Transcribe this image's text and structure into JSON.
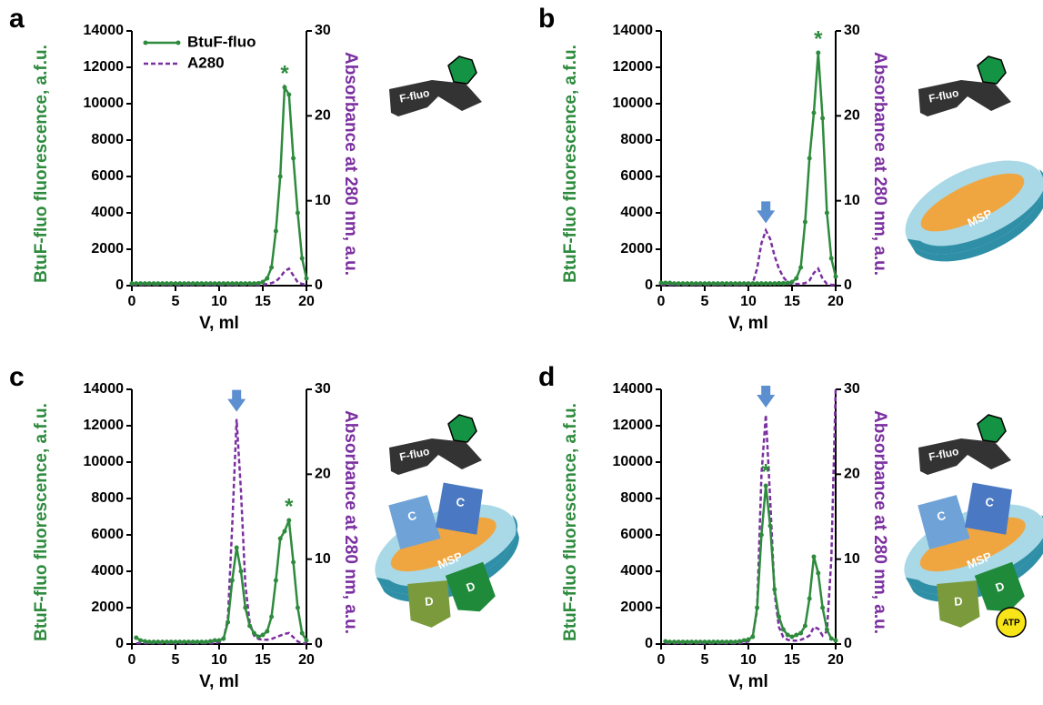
{
  "chart_data": [
    {
      "type": "line",
      "panel_label": "a",
      "x_label": "V, ml",
      "y_label": "BtuF-fluo fluorescence, a.f.u.",
      "y2_label": "Absorbance at 280 nm, a.u.",
      "xlim": [
        0,
        20
      ],
      "xticks": [
        0,
        5,
        10,
        15,
        20
      ],
      "ylim": [
        0,
        14000
      ],
      "yticks": [
        0,
        2000,
        4000,
        6000,
        8000,
        10000,
        12000,
        14000
      ],
      "y2lim": [
        0,
        30
      ],
      "y2ticks": [
        0,
        10,
        20,
        30
      ],
      "legend": "upper left",
      "annotations": [
        "*"
      ],
      "peak_arrow": false,
      "illustration_labels": {
        "ligand": "F-fluo"
      },
      "x": [
        0,
        0.5,
        1,
        1.5,
        2,
        2.5,
        3,
        3.5,
        4,
        4.5,
        5,
        5.5,
        6,
        6.5,
        7,
        7.5,
        8,
        8.5,
        9,
        9.5,
        10,
        10.5,
        11,
        11.5,
        12,
        12.5,
        13,
        13.5,
        14,
        14.5,
        15,
        15.5,
        16,
        16.5,
        17,
        17.5,
        18,
        18.5,
        19,
        19.5,
        20
      ],
      "series": [
        {
          "name": "BtuF-fluo",
          "color": "#2e8b3e",
          "markers": true,
          "line_style": "solid",
          "values": [
            120,
            120,
            120,
            120,
            120,
            120,
            120,
            120,
            120,
            120,
            120,
            120,
            120,
            120,
            120,
            120,
            120,
            120,
            120,
            120,
            120,
            120,
            120,
            120,
            120,
            120,
            120,
            120,
            120,
            130,
            200,
            400,
            1000,
            3000,
            6000,
            10900,
            10500,
            7000,
            4000,
            1500,
            400
          ]
        },
        {
          "name": "A280",
          "color": "#7b2fa0",
          "axis": "y2",
          "markers": false,
          "line_style": "dashed",
          "values": [
            0.1,
            0.1,
            0.1,
            0.1,
            0.1,
            0.1,
            0.1,
            0.1,
            0.1,
            0.1,
            0.1,
            0.1,
            0.1,
            0.1,
            0.1,
            0.1,
            0.1,
            0.1,
            0.1,
            0.1,
            0.1,
            0.1,
            0.1,
            0.1,
            0.1,
            0.1,
            0.1,
            0.1,
            0.1,
            0.1,
            0.1,
            0.2,
            0.3,
            0.5,
            1,
            1.7,
            2,
            1.2,
            0.4,
            0.2,
            0.1
          ]
        }
      ]
    },
    {
      "type": "line",
      "panel_label": "b",
      "x_label": "V, ml",
      "y_label": "BtuF-fluo fluorescence, a.f.u.",
      "y2_label": "Absorbance at 280 nm, a.u.",
      "xlim": [
        0,
        20
      ],
      "xticks": [
        0,
        5,
        10,
        15,
        20
      ],
      "ylim": [
        0,
        14000
      ],
      "yticks": [
        0,
        2000,
        4000,
        6000,
        8000,
        10000,
        12000,
        14000
      ],
      "y2lim": [
        0,
        30
      ],
      "y2ticks": [
        0,
        10,
        20,
        30
      ],
      "annotations": [
        "*"
      ],
      "peak_arrow": true,
      "illustration_labels": {
        "ligand": "F-fluo",
        "disc": "MSP"
      },
      "x": [
        0,
        0.5,
        1,
        1.5,
        2,
        2.5,
        3,
        3.5,
        4,
        4.5,
        5,
        5.5,
        6,
        6.5,
        7,
        7.5,
        8,
        8.5,
        9,
        9.5,
        10,
        10.5,
        11,
        11.5,
        12,
        12.5,
        13,
        13.5,
        14,
        14.5,
        15,
        15.5,
        16,
        16.5,
        17,
        17.5,
        18,
        18.5,
        19,
        19.5,
        20
      ],
      "series": [
        {
          "color": "#2e8b3e",
          "markers": true,
          "line_style": "solid",
          "values": [
            150,
            150,
            150,
            120,
            120,
            120,
            120,
            120,
            120,
            120,
            120,
            120,
            120,
            120,
            120,
            120,
            120,
            120,
            120,
            120,
            120,
            120,
            120,
            120,
            120,
            120,
            120,
            130,
            130,
            150,
            200,
            400,
            1000,
            3500,
            7000,
            9500,
            12800,
            9200,
            4000,
            1500,
            500
          ]
        },
        {
          "color": "#7b2fa0",
          "axis": "y2",
          "markers": false,
          "line_style": "dashed",
          "values": [
            0.1,
            0.1,
            0.1,
            0.1,
            0.1,
            0.1,
            0.1,
            0.1,
            0.1,
            0.1,
            0.1,
            0.1,
            0.1,
            0.1,
            0.1,
            0.1,
            0.1,
            0.1,
            0.1,
            0.1,
            0.1,
            0.3,
            2,
            5,
            6.5,
            5.5,
            3.5,
            2,
            1,
            0.4,
            0.2,
            0.2,
            0.2,
            0.3,
            0.6,
            1.5,
            2,
            0.8,
            0.2,
            0.1,
            0.1
          ]
        }
      ]
    },
    {
      "type": "line",
      "panel_label": "c",
      "x_label": "V, ml",
      "y_label": "BtuF-fluo fluorescence, a.f.u.",
      "y2_label": "Absorbance at 280 nm, a.u.",
      "xlim": [
        0,
        20
      ],
      "xticks": [
        0,
        5,
        10,
        15,
        20
      ],
      "ylim": [
        0,
        14000
      ],
      "yticks": [
        0,
        2000,
        4000,
        6000,
        8000,
        10000,
        12000,
        14000
      ],
      "y2lim": [
        0,
        30
      ],
      "y2ticks": [
        0,
        10,
        20,
        30
      ],
      "annotations": [
        "*"
      ],
      "peak_arrow": true,
      "illustration_labels": {
        "ligand": "F-fluo",
        "disc": "MSP",
        "c_blocks": [
          "C",
          "C"
        ],
        "d_blocks": [
          "D",
          "D"
        ]
      },
      "x": [
        0,
        0.5,
        1,
        1.5,
        2,
        2.5,
        3,
        3.5,
        4,
        4.5,
        5,
        5.5,
        6,
        6.5,
        7,
        7.5,
        8,
        8.5,
        9,
        9.5,
        10,
        10.5,
        11,
        11.5,
        12,
        12.5,
        13,
        13.5,
        14,
        14.5,
        15,
        15.5,
        16,
        16.5,
        17,
        17.5,
        18,
        18.5,
        19,
        19.5,
        20
      ],
      "series": [
        {
          "color": "#2e8b3e",
          "markers": true,
          "line_style": "solid",
          "values": [
            null,
            350,
            200,
            150,
            120,
            120,
            120,
            120,
            120,
            120,
            120,
            120,
            120,
            120,
            120,
            120,
            120,
            120,
            150,
            200,
            200,
            300,
            1200,
            3500,
            5300,
            4000,
            2000,
            1000,
            600,
            400,
            500,
            700,
            1500,
            3500,
            5800,
            6200,
            6800,
            4500,
            2000,
            600,
            200
          ]
        },
        {
          "color": "#7b2fa0",
          "axis": "y2",
          "markers": false,
          "line_style": "dashed",
          "values": [
            null,
            0.1,
            0.1,
            0.1,
            0.1,
            0.1,
            0.1,
            0.1,
            0.1,
            0.1,
            0.1,
            0.1,
            0.1,
            0.1,
            0.1,
            0.1,
            0.1,
            0.1,
            0.1,
            0.1,
            0.2,
            0.5,
            3,
            14,
            26.5,
            18,
            7,
            2.5,
            1,
            0.6,
            0.5,
            0.5,
            0.6,
            0.8,
            1,
            1.2,
            1.3,
            0.8,
            0.3,
            0.1,
            0.1
          ]
        }
      ]
    },
    {
      "type": "line",
      "panel_label": "d",
      "x_label": "V, ml",
      "y_label": "BtuF-fluo fluorescence, a.f.u.",
      "y2_label": "Absorbance at 280 nm, a.u.",
      "xlim": [
        0,
        20
      ],
      "xticks": [
        0,
        5,
        10,
        15,
        20
      ],
      "ylim": [
        0,
        14000
      ],
      "yticks": [
        0,
        2000,
        4000,
        6000,
        8000,
        10000,
        12000,
        14000
      ],
      "y2lim": [
        0,
        30
      ],
      "y2ticks": [
        0,
        10,
        20,
        30
      ],
      "annotations": [
        "*"
      ],
      "peak_arrow": true,
      "illustration_labels": {
        "ligand": "F-fluo",
        "disc": "MSP",
        "c_blocks": [
          "C",
          "C"
        ],
        "d_blocks": [
          "D",
          "D"
        ],
        "atp": "ATP"
      },
      "x": [
        0,
        0.5,
        1,
        1.5,
        2,
        2.5,
        3,
        3.5,
        4,
        4.5,
        5,
        5.5,
        6,
        6.5,
        7,
        7.5,
        8,
        8.5,
        9,
        9.5,
        10,
        10.5,
        11,
        11.5,
        12,
        12.5,
        13,
        13.5,
        14,
        14.5,
        15,
        15.5,
        16,
        16.5,
        17,
        17.5,
        18,
        18.5,
        19,
        19.5,
        20
      ],
      "series": [
        {
          "color": "#2e8b3e",
          "markers": true,
          "line_style": "solid",
          "values": [
            null,
            150,
            120,
            120,
            120,
            120,
            120,
            120,
            120,
            120,
            120,
            120,
            120,
            120,
            120,
            120,
            120,
            120,
            150,
            200,
            250,
            400,
            2000,
            6000,
            8700,
            6500,
            3000,
            1500,
            800,
            500,
            400,
            500,
            600,
            1000,
            2500,
            4800,
            3900,
            2000,
            800,
            300,
            200
          ]
        },
        {
          "color": "#7b2fa0",
          "axis": "y2",
          "markers": false,
          "line_style": "dashed",
          "values": [
            null,
            0.1,
            0.1,
            0.1,
            0.1,
            0.1,
            0.1,
            0.1,
            0.1,
            0.1,
            0.1,
            0.1,
            0.1,
            0.1,
            0.1,
            0.1,
            0.1,
            0.1,
            0.1,
            0.2,
            0.3,
            1,
            4,
            20,
            27,
            17,
            6,
            2,
            0.8,
            0.5,
            0.4,
            0.4,
            0.5,
            0.7,
            1,
            2,
            1.8,
            1,
            1.5,
            10,
            30
          ]
        }
      ]
    }
  ]
}
